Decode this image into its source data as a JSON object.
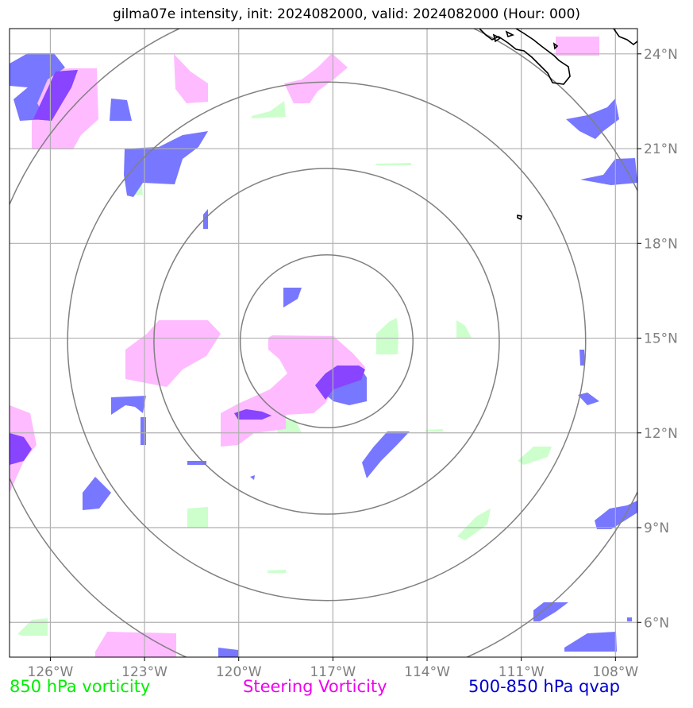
{
  "title": "gilma07e intensity, init: 2024082000, valid: 2024082000 (Hour: 000)",
  "map": {
    "lon_range": [
      -127.3,
      -107.3
    ],
    "lat_range": [
      4.9,
      24.8
    ],
    "center": {
      "lon": -117.2,
      "lat": 14.9
    },
    "range_rings_deg": [
      2.75,
      5.5,
      8.25,
      11.0
    ],
    "lon_ticks": [
      {
        "value": -126,
        "label": "126°W"
      },
      {
        "value": -123,
        "label": "123°W"
      },
      {
        "value": -120,
        "label": "120°W"
      },
      {
        "value": -117,
        "label": "117°W"
      },
      {
        "value": -114,
        "label": "114°W"
      },
      {
        "value": -111,
        "label": "111°W"
      },
      {
        "value": -108,
        "label": "108°W"
      }
    ],
    "lat_ticks": [
      {
        "value": 24,
        "label": "24°N"
      },
      {
        "value": 21,
        "label": "21°N"
      },
      {
        "value": 18,
        "label": "18°N"
      },
      {
        "value": 15,
        "label": "15°N"
      },
      {
        "value": 12,
        "label": "12°N"
      },
      {
        "value": 9,
        "label": "9°N"
      },
      {
        "value": 6,
        "label": "6°N"
      }
    ],
    "colors": {
      "vorticity_850": "#ccffcc",
      "steering_vorticity": "#ffbbff",
      "qvap_500_850": "#7777ff",
      "qvap_overlap": "#8844ff",
      "rings": "#808080",
      "grid": "#b0b0b0",
      "coast": "#000000"
    }
  },
  "legend": {
    "green": {
      "label": "850 hPa vorticity",
      "color": "#00ee00"
    },
    "magenta": {
      "label": "Steering Vorticity",
      "color": "#ee00ee"
    },
    "blue": {
      "label": "500-850 hPa qvap",
      "color": "#0000cc"
    }
  }
}
